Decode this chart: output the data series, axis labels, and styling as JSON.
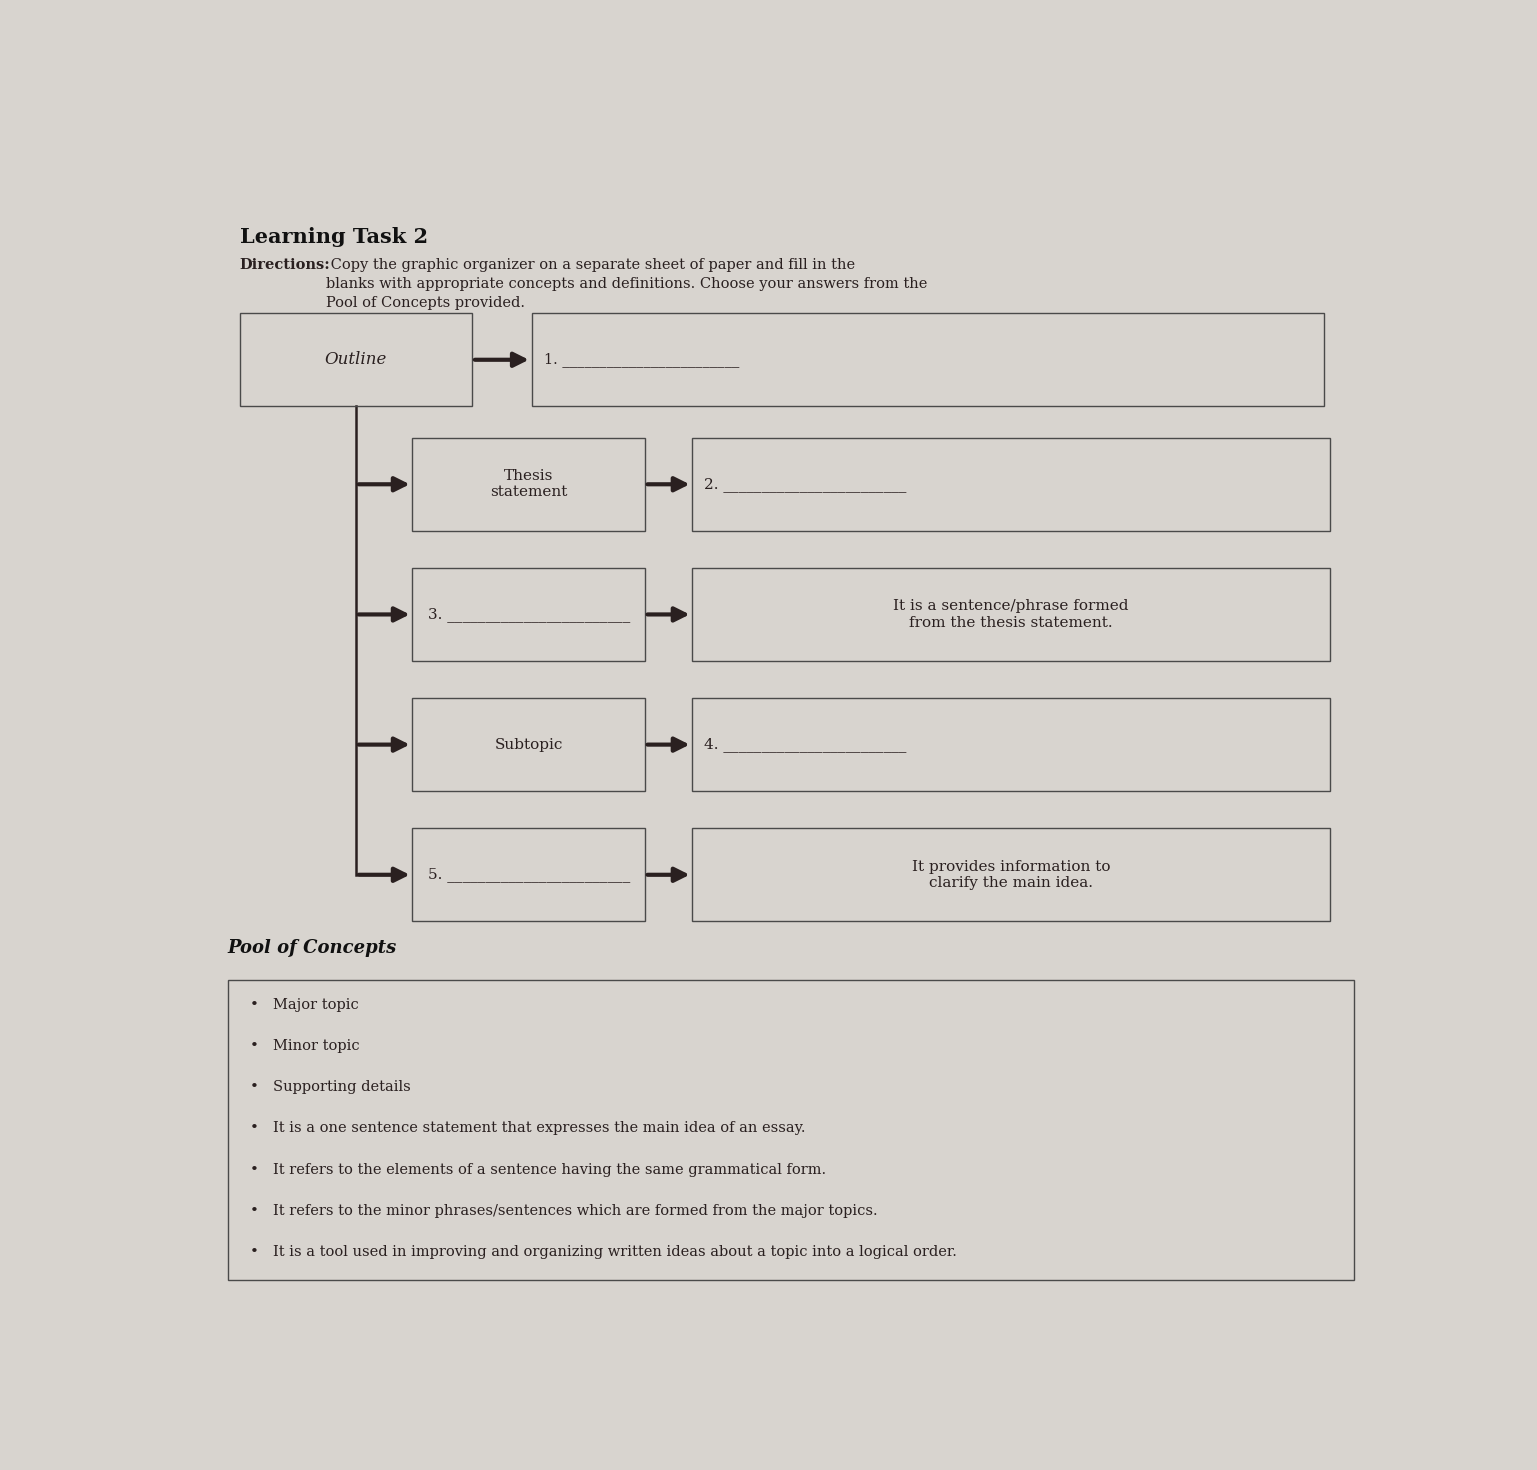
{
  "title": "Learning Task 2",
  "directions_bold": "Directions:",
  "directions_rest": " Copy the graphic organizer on a separate sheet of paper and fill in the\nblanks with appropriate concepts and definitions. Choose your answers from the\nPool of Concepts provided.",
  "bg_color": "#d8d4cf",
  "box_face_color": "none",
  "box_edge_color": "#4a4a4a",
  "text_color": "#2a2020",
  "arrow_color": "#2a2020",
  "pool_title": "Pool of Concepts",
  "pool_items": [
    "Major topic",
    "Minor topic",
    "Supporting details",
    "It is a one sentence statement that expresses the main idea of an essay.",
    "It refers to the elements of a sentence having the same grammatical form.",
    "It refers to the minor phrases/sentences which are formed from the major topics.",
    "It is a tool used in improving and organizing written ideas about a topic into a logical order."
  ],
  "row0_left_label": "Outline",
  "row0_right_label": "1.",
  "rows": [
    {
      "left": "Thesis\nstatement",
      "right": "2.",
      "left_italic": false,
      "right_blank": true
    },
    {
      "left": "3.",
      "right": "It is a sentence/phrase formed\nfrom the thesis statement.",
      "left_italic": false,
      "right_blank": false
    },
    {
      "left": "Subtopic",
      "right": "4.",
      "left_italic": false,
      "right_blank": true
    },
    {
      "left": "5.",
      "right": "It provides information to\nclarify the main idea.",
      "left_italic": false,
      "right_blank": false
    }
  ]
}
